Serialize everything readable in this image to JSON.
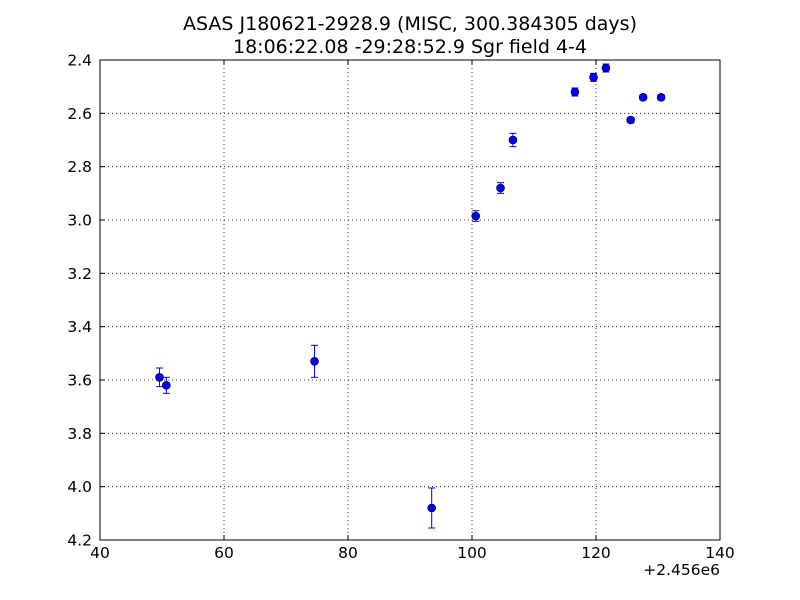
{
  "chart_data": {
    "type": "scatter",
    "title": "ASAS J180621-2928.9  (MISC, 300.384305 days)",
    "subtitle": "18:06:22.08 -29:28:52.9 Sgr field 4-4",
    "xlabel": "",
    "ylabel": "",
    "x_offset_label": "+2.456e6",
    "xlim": [
      40,
      140
    ],
    "ylim": [
      4.2,
      2.4
    ],
    "y_inverted": true,
    "grid": true,
    "marker_color": "#0000ff",
    "x_ticks": [
      40,
      60,
      80,
      100,
      120,
      140
    ],
    "x_tick_labels": [
      "40",
      "60",
      "80",
      "100",
      "120",
      "140"
    ],
    "y_ticks": [
      2.4,
      2.6,
      2.8,
      3.0,
      3.2,
      3.4,
      3.6,
      3.8,
      4.0,
      4.2
    ],
    "y_tick_labels": [
      "2.4",
      "2.6",
      "2.8",
      "3.0",
      "3.2",
      "3.4",
      "3.6",
      "3.8",
      "4.0",
      "4.2"
    ],
    "points": [
      {
        "x": 49.6,
        "y": 3.59,
        "err": 0.035
      },
      {
        "x": 50.7,
        "y": 3.62,
        "err": 0.03
      },
      {
        "x": 74.6,
        "y": 3.53,
        "err": 0.06
      },
      {
        "x": 93.5,
        "y": 4.08,
        "err": 0.075
      },
      {
        "x": 100.6,
        "y": 2.985,
        "err": 0.02
      },
      {
        "x": 104.6,
        "y": 2.88,
        "err": 0.02
      },
      {
        "x": 106.6,
        "y": 2.7,
        "err": 0.025
      },
      {
        "x": 116.6,
        "y": 2.52,
        "err": 0.015
      },
      {
        "x": 119.6,
        "y": 2.465,
        "err": 0.015
      },
      {
        "x": 121.6,
        "y": 2.43,
        "err": 0.015
      },
      {
        "x": 125.6,
        "y": 2.625,
        "err": 0.01
      },
      {
        "x": 127.6,
        "y": 2.54,
        "err": 0.01
      },
      {
        "x": 130.5,
        "y": 2.54,
        "err": 0.01
      }
    ]
  }
}
